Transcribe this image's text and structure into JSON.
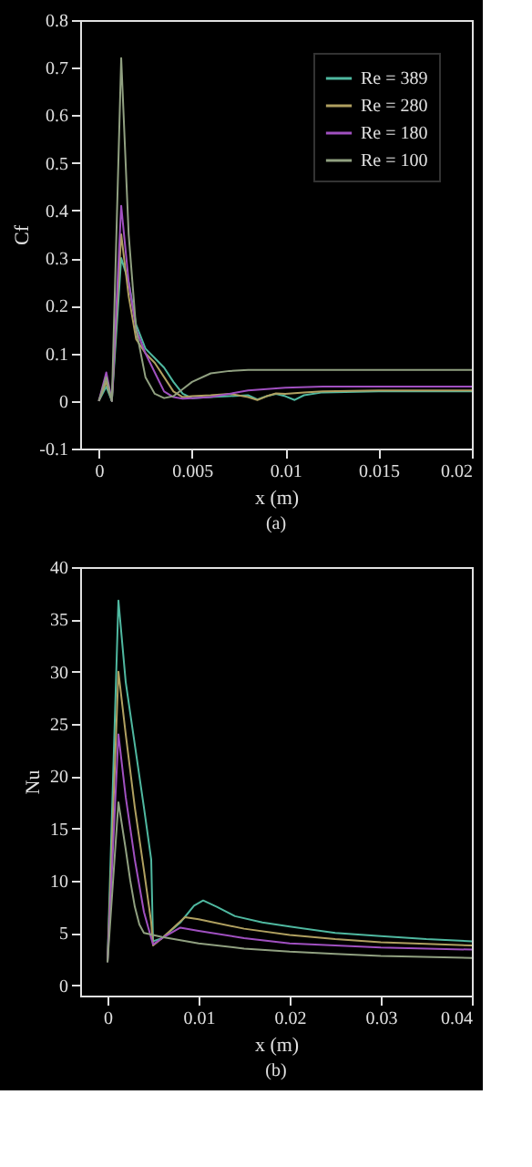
{
  "chart_data": [
    {
      "type": "line",
      "xlabel": "x (m)",
      "ylabel": "Cf",
      "annotations": [
        "(a)"
      ],
      "xlim": [
        -0.001,
        0.02
      ],
      "ylim": [
        -0.1,
        0.8
      ],
      "xticks": [
        0,
        0.005,
        0.01,
        0.015,
        0.02
      ],
      "yticks": [
        -0.1,
        0,
        0.1,
        0.2,
        0.3,
        0.4,
        0.5,
        0.6,
        0.7,
        0.8
      ],
      "grid": false,
      "legend": "top right",
      "line_style": "solid",
      "marker": "none",
      "series": [
        {
          "name": "Re = 389",
          "color": "#4fb8a0",
          "x": [
            0,
            0.0004,
            0.0007,
            0.0012,
            0.0016,
            0.002,
            0.0025,
            0.003,
            0.0035,
            0.004,
            0.0045,
            0.005,
            0.006,
            0.007,
            0.008,
            0.0085,
            0.009,
            0.0095,
            0.01,
            0.0105,
            0.011,
            0.012,
            0.015,
            0.02
          ],
          "values": [
            0,
            0.03,
            0,
            0.3,
            0.25,
            0.16,
            0.11,
            0.09,
            0.07,
            0.04,
            0.015,
            0.006,
            0.008,
            0.01,
            0.012,
            0.003,
            0.01,
            0.015,
            0.01,
            0.002,
            0.012,
            0.018,
            0.02,
            0.02
          ]
        },
        {
          "name": "Re = 280",
          "color": "#b0a060",
          "x": [
            0,
            0.0004,
            0.0007,
            0.0012,
            0.0016,
            0.002,
            0.0025,
            0.003,
            0.0035,
            0.004,
            0.0045,
            0.005,
            0.006,
            0.007,
            0.008,
            0.0085,
            0.009,
            0.0095,
            0.01,
            0.011,
            0.012,
            0.015,
            0.02
          ],
          "values": [
            0,
            0.04,
            0,
            0.35,
            0.22,
            0.13,
            0.1,
            0.08,
            0.05,
            0.02,
            0.008,
            0.01,
            0.012,
            0.015,
            0.008,
            0.002,
            0.01,
            0.016,
            0.015,
            0.018,
            0.02,
            0.022,
            0.022
          ]
        },
        {
          "name": "Re = 180",
          "color": "#a050c0",
          "x": [
            0,
            0.0004,
            0.0007,
            0.0012,
            0.0016,
            0.002,
            0.0025,
            0.003,
            0.0035,
            0.004,
            0.0045,
            0.005,
            0.006,
            0.007,
            0.008,
            0.01,
            0.012,
            0.015,
            0.02
          ],
          "values": [
            0,
            0.06,
            0,
            0.41,
            0.25,
            0.15,
            0.1,
            0.06,
            0.02,
            0.008,
            0.005,
            0.006,
            0.008,
            0.015,
            0.022,
            0.028,
            0.03,
            0.03,
            0.03
          ]
        },
        {
          "name": "Re = 100",
          "color": "#90a080",
          "x": [
            0,
            0.0004,
            0.0007,
            0.0012,
            0.0016,
            0.002,
            0.0025,
            0.003,
            0.0035,
            0.004,
            0.0045,
            0.005,
            0.006,
            0.007,
            0.008,
            0.01,
            0.015,
            0.02
          ],
          "values": [
            0,
            0.05,
            0,
            0.72,
            0.35,
            0.15,
            0.05,
            0.015,
            0.006,
            0.01,
            0.025,
            0.04,
            0.058,
            0.063,
            0.065,
            0.065,
            0.065,
            0.065
          ]
        }
      ]
    },
    {
      "type": "line",
      "xlabel": "x (m)",
      "ylabel": "Nu",
      "annotations": [
        "(b)"
      ],
      "xlim": [
        -0.003,
        0.04
      ],
      "ylim": [
        -1,
        40
      ],
      "xticks": [
        0,
        0.01,
        0.02,
        0.03,
        0.04
      ],
      "yticks": [
        0,
        5,
        10,
        15,
        20,
        25,
        30,
        35,
        40
      ],
      "grid": false,
      "legend": "top right",
      "line_style": "solid",
      "marker": "none",
      "series": [
        {
          "name": "Re = 389",
          "color": "#4fb8a0",
          "x": [
            0,
            0.0012,
            0.002,
            0.003,
            0.004,
            0.0048,
            0.005,
            0.006,
            0.008,
            0.0095,
            0.0105,
            0.012,
            0.014,
            0.017,
            0.02,
            0.025,
            0.03,
            0.035,
            0.04
          ],
          "values": [
            2.2,
            36.8,
            29,
            23,
            17,
            12,
            4.2,
            4.5,
            6,
            7.6,
            8.1,
            7.5,
            6.6,
            6,
            5.6,
            5,
            4.7,
            4.4,
            4.2
          ]
        },
        {
          "name": "Re = 280",
          "color": "#b0a060",
          "x": [
            0,
            0.0012,
            0.002,
            0.003,
            0.004,
            0.0048,
            0.005,
            0.006,
            0.0085,
            0.01,
            0.015,
            0.02,
            0.025,
            0.03,
            0.04
          ],
          "values": [
            2.2,
            30,
            24,
            17,
            11,
            6,
            3.8,
            4.5,
            6.5,
            6.3,
            5.4,
            4.8,
            4.4,
            4.1,
            3.8
          ]
        },
        {
          "name": "Re = 180",
          "color": "#a050c0",
          "x": [
            0,
            0.0012,
            0.002,
            0.003,
            0.004,
            0.0048,
            0.005,
            0.006,
            0.008,
            0.01,
            0.015,
            0.02,
            0.025,
            0.03,
            0.04
          ],
          "values": [
            2.2,
            24,
            18,
            12,
            7,
            4.5,
            3.9,
            4.5,
            5.5,
            5.2,
            4.5,
            4,
            3.8,
            3.6,
            3.4
          ]
        },
        {
          "name": "Re = 100",
          "color": "#90a080",
          "x": [
            0,
            0.0012,
            0.002,
            0.0025,
            0.003,
            0.0035,
            0.004,
            0.005,
            0.006,
            0.008,
            0.01,
            0.015,
            0.02,
            0.025,
            0.03,
            0.04
          ],
          "values": [
            2.2,
            17.5,
            13,
            10,
            7.5,
            5.8,
            5,
            4.8,
            4.6,
            4.3,
            4,
            3.5,
            3.2,
            3,
            2.8,
            2.6
          ]
        }
      ]
    }
  ]
}
